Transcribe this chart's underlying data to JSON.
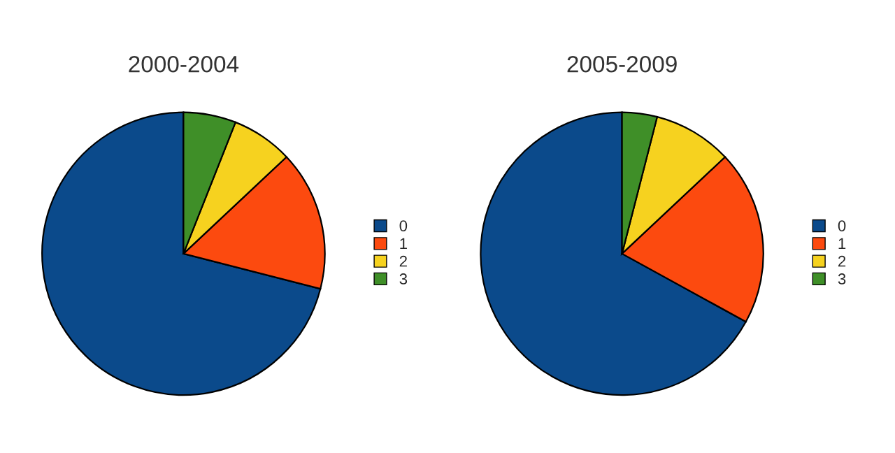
{
  "chart_data": [
    {
      "type": "pie",
      "title": "2000-2004",
      "categories": [
        "0",
        "1",
        "2",
        "3"
      ],
      "values": [
        71,
        16,
        7,
        6
      ],
      "colors": [
        "#0b4a8b",
        "#fc4a0f",
        "#f6d21f",
        "#3f8f28"
      ],
      "legend": "right"
    },
    {
      "type": "pie",
      "title": "2005-2009",
      "categories": [
        "0",
        "1",
        "2",
        "3"
      ],
      "values": [
        67,
        20,
        9,
        4
      ],
      "colors": [
        "#0b4a8b",
        "#fc4a0f",
        "#f6d21f",
        "#3f8f28"
      ],
      "legend": "right"
    }
  ]
}
